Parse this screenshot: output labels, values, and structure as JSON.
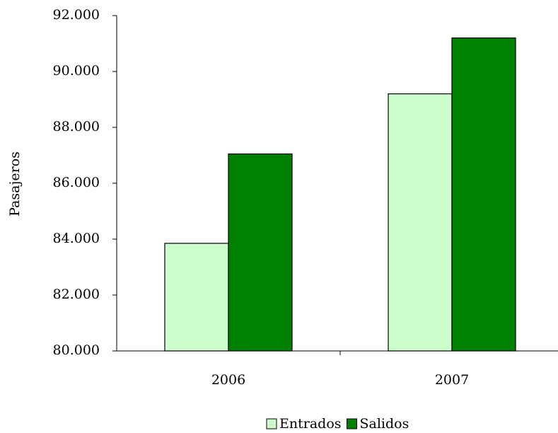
{
  "chart_data": {
    "type": "bar",
    "y_label": "Pasajeros",
    "categories": [
      "2006",
      "2007"
    ],
    "series": [
      {
        "name": "Entrados",
        "color": "#ccffcc",
        "values": [
          83850,
          89200
        ]
      },
      {
        "name": "Salidos",
        "color": "#008000",
        "values": [
          87050,
          91200
        ]
      }
    ],
    "ylim": [
      80000,
      92000
    ],
    "yticks": [
      {
        "value": 80000,
        "label": "80.000"
      },
      {
        "value": 82000,
        "label": "82.000"
      },
      {
        "value": 84000,
        "label": "84.000"
      },
      {
        "value": 86000,
        "label": "86.000"
      },
      {
        "value": 88000,
        "label": "88.000"
      },
      {
        "value": 90000,
        "label": "90.000"
      },
      {
        "value": 92000,
        "label": "92.000"
      }
    ],
    "legend": "bottom"
  }
}
